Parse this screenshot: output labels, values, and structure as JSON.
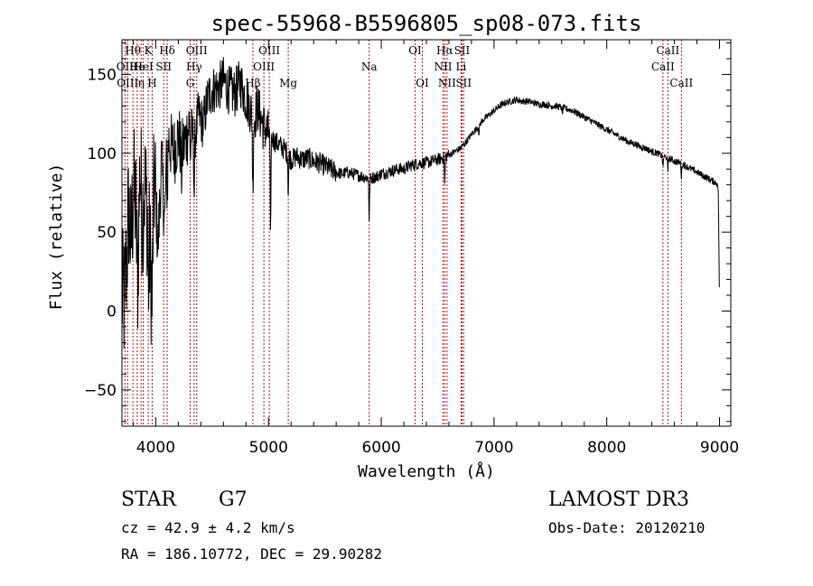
{
  "chart_data": {
    "type": "line",
    "title": "spec-55968-B5596805_sp08-073.fits",
    "xlabel": "Wavelength (Å)",
    "ylabel": "Flux (relative)",
    "xlim": [
      3700,
      9100
    ],
    "ylim": [
      -73,
      172
    ],
    "xticks": [
      4000,
      5000,
      6000,
      7000,
      8000,
      9000
    ],
    "yticks": [
      -50,
      0,
      50,
      100,
      150
    ],
    "series": [
      {
        "name": "spectrum",
        "anchors": [
          [
            3700,
            10
          ],
          [
            3720,
            5
          ],
          [
            3740,
            30
          ],
          [
            3760,
            65
          ],
          [
            3780,
            40
          ],
          [
            3800,
            75
          ],
          [
            3820,
            70
          ],
          [
            3840,
            20
          ],
          [
            3860,
            95
          ],
          [
            3880,
            60
          ],
          [
            3900,
            80
          ],
          [
            3930,
            60
          ],
          [
            3960,
            20
          ],
          [
            3990,
            85
          ],
          [
            4020,
            40
          ],
          [
            4050,
            95
          ],
          [
            4080,
            55
          ],
          [
            4100,
            112
          ],
          [
            4130,
            105
          ],
          [
            4170,
            102
          ],
          [
            4200,
            112
          ],
          [
            4230,
            100
          ],
          [
            4270,
            110
          ],
          [
            4300,
            120
          ],
          [
            4340,
            108
          ],
          [
            4380,
            125
          ],
          [
            4420,
            118
          ],
          [
            4460,
            135
          ],
          [
            4500,
            140
          ],
          [
            4560,
            142
          ],
          [
            4600,
            146
          ],
          [
            4650,
            140
          ],
          [
            4700,
            138
          ],
          [
            4750,
            145
          ],
          [
            4800,
            135
          ],
          [
            4840,
            128
          ],
          [
            4870,
            120
          ],
          [
            4900,
            130
          ],
          [
            4950,
            118
          ],
          [
            5000,
            112
          ],
          [
            5050,
            108
          ],
          [
            5100,
            105
          ],
          [
            5150,
            102
          ],
          [
            5200,
            96
          ],
          [
            5250,
            98
          ],
          [
            5300,
            96
          ],
          [
            5350,
            97
          ],
          [
            5400,
            95
          ],
          [
            5450,
            94
          ],
          [
            5500,
            92
          ],
          [
            5550,
            90
          ],
          [
            5600,
            88
          ],
          [
            5650,
            87
          ],
          [
            5700,
            88
          ],
          [
            5750,
            87
          ],
          [
            5800,
            86
          ],
          [
            5850,
            85
          ],
          [
            5900,
            84
          ],
          [
            5950,
            85
          ],
          [
            6000,
            87
          ],
          [
            6050,
            88
          ],
          [
            6100,
            89
          ],
          [
            6150,
            90
          ],
          [
            6200,
            90
          ],
          [
            6250,
            92
          ],
          [
            6300,
            93
          ],
          [
            6350,
            94
          ],
          [
            6400,
            94
          ],
          [
            6450,
            95
          ],
          [
            6500,
            96
          ],
          [
            6550,
            97
          ],
          [
            6600,
            99
          ],
          [
            6650,
            101
          ],
          [
            6700,
            103
          ],
          [
            6750,
            107
          ],
          [
            6800,
            112
          ],
          [
            6850,
            116
          ],
          [
            6900,
            121
          ],
          [
            6950,
            124
          ],
          [
            7000,
            127
          ],
          [
            7050,
            130
          ],
          [
            7100,
            132
          ],
          [
            7150,
            133
          ],
          [
            7200,
            134
          ],
          [
            7250,
            133
          ],
          [
            7300,
            133
          ],
          [
            7350,
            132
          ],
          [
            7400,
            131
          ],
          [
            7450,
            131
          ],
          [
            7500,
            130
          ],
          [
            7550,
            130
          ],
          [
            7600,
            129
          ],
          [
            7650,
            128
          ],
          [
            7700,
            127
          ],
          [
            7750,
            125
          ],
          [
            7800,
            123
          ],
          [
            7850,
            121
          ],
          [
            7900,
            119
          ],
          [
            7950,
            117
          ],
          [
            8000,
            115
          ],
          [
            8050,
            113
          ],
          [
            8100,
            111
          ],
          [
            8150,
            109
          ],
          [
            8200,
            107
          ],
          [
            8250,
            106
          ],
          [
            8300,
            104
          ],
          [
            8350,
            103
          ],
          [
            8400,
            101
          ],
          [
            8450,
            100
          ],
          [
            8500,
            98
          ],
          [
            8550,
            97
          ],
          [
            8600,
            95
          ],
          [
            8650,
            94
          ],
          [
            8700,
            92
          ],
          [
            8750,
            90
          ],
          [
            8800,
            88
          ],
          [
            8850,
            86
          ],
          [
            8900,
            84
          ],
          [
            8950,
            82
          ],
          [
            8980,
            81
          ],
          [
            8990,
            75
          ],
          [
            9000,
            0
          ]
        ],
        "dips": [
          [
            3934,
            45
          ],
          [
            3969,
            35
          ],
          [
            4102,
            40
          ],
          [
            4227,
            15
          ],
          [
            4308,
            20
          ],
          [
            4341,
            35
          ],
          [
            4861,
            45
          ],
          [
            5018,
            70
          ],
          [
            5175,
            25
          ],
          [
            5893,
            28
          ],
          [
            6563,
            18
          ],
          [
            6867,
            6
          ],
          [
            7605,
            5
          ],
          [
            8498,
            8
          ],
          [
            8542,
            10
          ],
          [
            8662,
            9
          ]
        ]
      }
    ],
    "spectral_lines": [
      {
        "label": "Hθ",
        "x": 3797,
        "row": 1
      },
      {
        "label": "OII",
        "x": 3727,
        "row": 2
      },
      {
        "label": "OIII",
        "x": 3750,
        "row": 3
      },
      {
        "label": "He",
        "x": 3835,
        "row": 2
      },
      {
        "label": "η",
        "x": 3870,
        "row": 3
      },
      {
        "label": "K",
        "x": 3933,
        "row": 1
      },
      {
        "label": "HeI",
        "x": 3889,
        "row": 2
      },
      {
        "label": "H",
        "x": 3968,
        "row": 3
      },
      {
        "label": "SII",
        "x": 4070,
        "row": 2
      },
      {
        "label": "Hδ",
        "x": 4101,
        "row": 1
      },
      {
        "label": "OIII",
        "x": 4363,
        "row": 1
      },
      {
        "label": "Hγ",
        "x": 4340,
        "row": 2
      },
      {
        "label": "G",
        "x": 4305,
        "row": 3
      },
      {
        "label": "Hβ",
        "x": 4861,
        "row": 3
      },
      {
        "label": "OIII",
        "x": 5007,
        "row": 1
      },
      {
        "label": "OIII",
        "x": 4959,
        "row": 2
      },
      {
        "label": "Mg",
        "x": 5175,
        "row": 3
      },
      {
        "label": "Na",
        "x": 5893,
        "row": 2
      },
      {
        "label": "OI",
        "x": 6300,
        "row": 1
      },
      {
        "label": "OI",
        "x": 6364,
        "row": 3
      },
      {
        "label": "Hα",
        "x": 6563,
        "row": 1
      },
      {
        "label": "SII",
        "x": 6716,
        "row": 1
      },
      {
        "label": "NII",
        "x": 6548,
        "row": 2
      },
      {
        "label": "Li",
        "x": 6708,
        "row": 2
      },
      {
        "label": "NII",
        "x": 6583,
        "row": 3
      },
      {
        "label": "SII",
        "x": 6731,
        "row": 3
      },
      {
        "label": "CaII",
        "x": 8542,
        "row": 1
      },
      {
        "label": "CaII",
        "x": 8498,
        "row": 2
      },
      {
        "label": "CaII",
        "x": 8662,
        "row": 3
      }
    ]
  },
  "info": {
    "class": "STAR",
    "subclass": "G7",
    "survey": "LAMOST DR3",
    "cz": "cz = 42.9 ± 4.2 km/s",
    "obs_date": "Obs-Date: 20120210",
    "coords": "RA = 186.10772, DEC =  29.90282"
  },
  "colors": {
    "line_marker": "#a0181c",
    "spectrum": "#000000",
    "axes": "#000000"
  }
}
